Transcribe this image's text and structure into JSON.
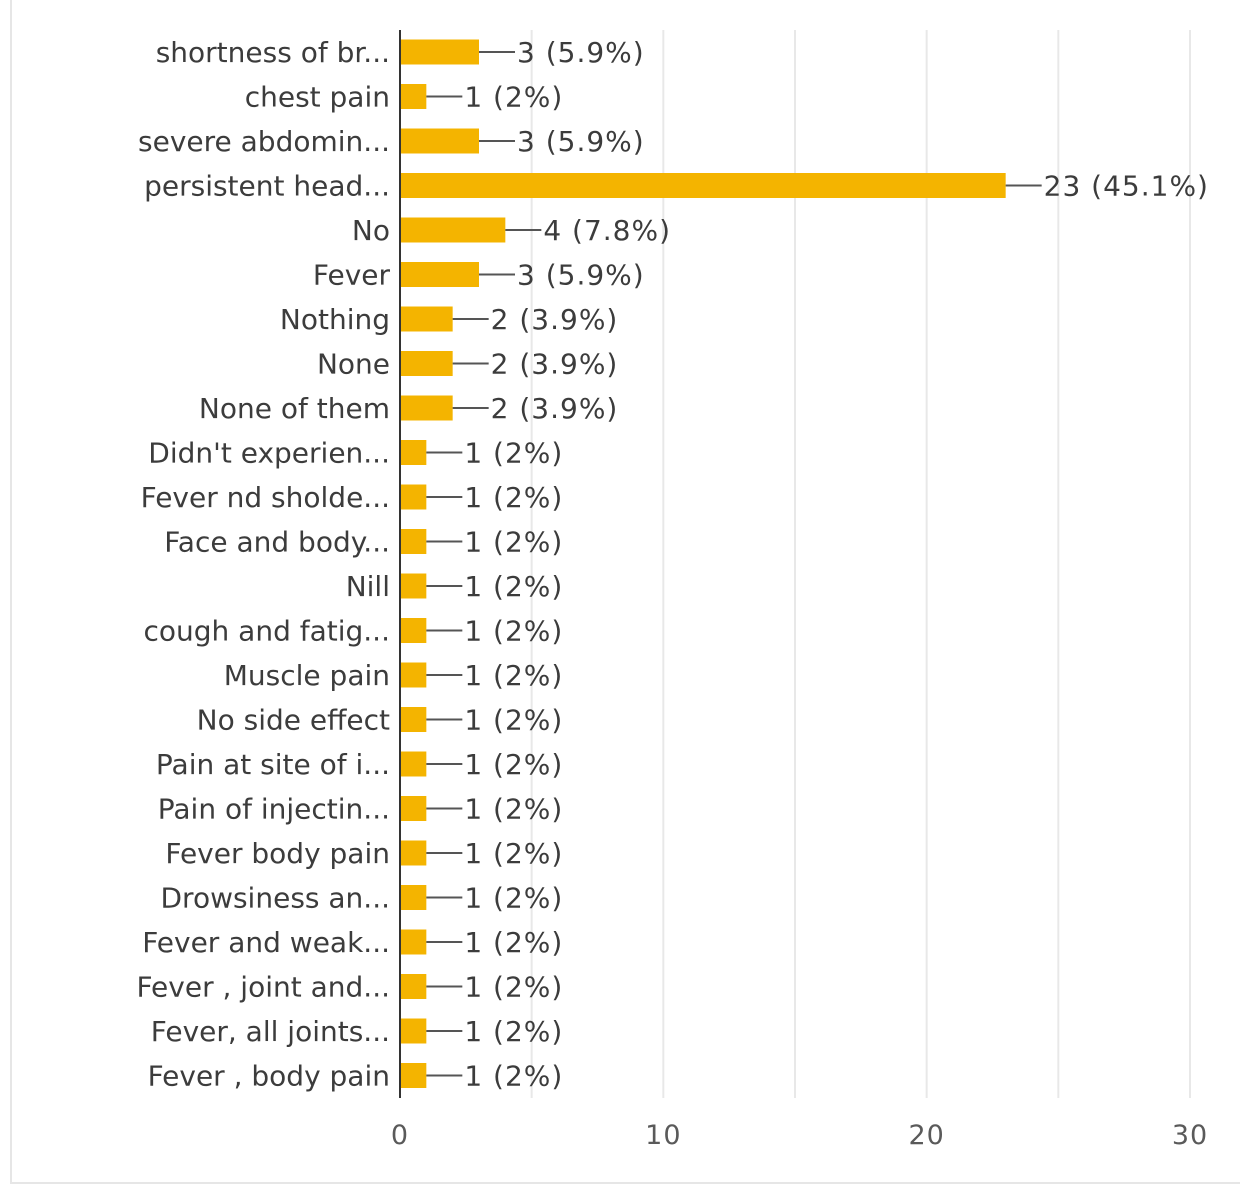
{
  "chart_data": {
    "type": "bar",
    "orientation": "horizontal",
    "categories": [
      "shortness of br...",
      "chest pain",
      "severe abdomin...",
      "persistent head...",
      "No",
      "Fever",
      "Nothing",
      "None",
      "None of them",
      "Didn't experien...",
      "Fever nd sholde...",
      "Face and body...",
      "Nill",
      "cough and fatig...",
      "Muscle pain",
      "No side effect",
      "Pain at site of i...",
      "Pain of injectin...",
      "Fever body pain",
      "Drowsiness an...",
      "Fever and weak...",
      "Fever , joint and...",
      "Fever, all joints...",
      "Fever , body pain"
    ],
    "values": [
      3,
      1,
      3,
      23,
      4,
      3,
      2,
      2,
      2,
      1,
      1,
      1,
      1,
      1,
      1,
      1,
      1,
      1,
      1,
      1,
      1,
      1,
      1,
      1
    ],
    "data_labels": [
      "3 (5.9%)",
      "1 (2%)",
      "3 (5.9%)",
      "23 (45.1%)",
      "4 (7.8%)",
      "3 (5.9%)",
      "2 (3.9%)",
      "2 (3.9%)",
      "2 (3.9%)",
      "1 (2%)",
      "1 (2%)",
      "1 (2%)",
      "1 (2%)",
      "1 (2%)",
      "1 (2%)",
      "1 (2%)",
      "1 (2%)",
      "1 (2%)",
      "1 (2%)",
      "1 (2%)",
      "1 (2%)",
      "1 (2%)",
      "1 (2%)",
      "1 (2%)"
    ],
    "x_ticks": [
      "0",
      "10",
      "20",
      "30"
    ],
    "xlim": [
      0,
      30
    ],
    "title": "",
    "xlabel": "",
    "ylabel": "",
    "grid": true,
    "bar_color": "#f4b400",
    "axis_color": "#333333",
    "grid_color": "#e8e8e8"
  }
}
